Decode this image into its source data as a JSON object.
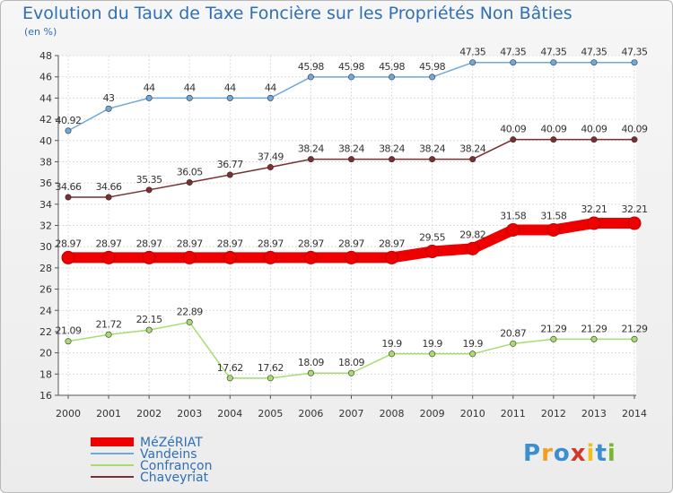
{
  "title": "Evolution du Taux de Taxe Foncière sur les Propriétés Non Bâties",
  "subtitle": "(en %)",
  "logo": {
    "text": "Proxiti",
    "letters": [
      "P",
      "r",
      "o",
      "x",
      "i",
      "t",
      "i"
    ],
    "colors": [
      "#3a8fd0",
      "#f0a020",
      "#3a8fd0",
      "#d0392b",
      "#f0c020",
      "#3a8fd0",
      "#7ab530"
    ]
  },
  "chart_data": {
    "type": "line",
    "x": [
      "2000",
      "2001",
      "2002",
      "2003",
      "2004",
      "2005",
      "2006",
      "2007",
      "2008",
      "2009",
      "2010",
      "2011",
      "2012",
      "2013",
      "2014"
    ],
    "ylim": [
      16,
      48
    ],
    "yticks": [
      16,
      18,
      20,
      22,
      24,
      26,
      28,
      30,
      32,
      34,
      36,
      38,
      40,
      42,
      44,
      46,
      48
    ],
    "grid": true,
    "legend_position": "bottom-left",
    "series": [
      {
        "name": "MéZéRIAT",
        "color": "#ee0000",
        "width": 12,
        "values": [
          28.97,
          28.97,
          28.97,
          28.97,
          28.97,
          28.97,
          28.97,
          28.97,
          28.97,
          29.55,
          29.82,
          31.58,
          31.58,
          32.21,
          32.21
        ],
        "labels": [
          "28.97",
          "28.97",
          "28.97",
          "28.97",
          "28.97",
          "28.97",
          "28.97",
          "28.97",
          "28.97",
          "29.55",
          "29.82",
          "31.58",
          "31.58",
          "32.21",
          "32.21"
        ]
      },
      {
        "name": "Vandeins",
        "color": "#6fa8dc",
        "width": 1.5,
        "values": [
          40.92,
          43,
          44,
          44,
          44,
          44,
          45.98,
          45.98,
          45.98,
          45.98,
          47.35,
          47.35,
          47.35,
          47.35,
          47.35
        ],
        "labels": [
          "40.92",
          "43",
          "44",
          "44",
          "44",
          "44",
          "45.98",
          "45.98",
          "45.98",
          "45.98",
          "47.35",
          "47.35",
          "47.35",
          "47.35",
          "47.35"
        ]
      },
      {
        "name": "Confrançon",
        "color": "#a8dc6f",
        "width": 1.5,
        "values": [
          21.09,
          21.72,
          22.15,
          22.89,
          17.62,
          17.62,
          18.09,
          18.09,
          19.9,
          19.9,
          19.9,
          20.87,
          21.29,
          21.29,
          21.29
        ],
        "labels": [
          "21.09",
          "21.72",
          "22.15",
          "22.89",
          "17.62",
          "17.62",
          "18.09",
          "18.09",
          "19.9",
          "19.9",
          "19.9",
          "20.87",
          "21.29",
          "21.29",
          "21.29"
        ]
      },
      {
        "name": "Chaveyriat",
        "color": "#7a3030",
        "width": 1.5,
        "values": [
          34.66,
          34.66,
          35.35,
          36.05,
          36.77,
          37.49,
          38.24,
          38.24,
          38.24,
          38.24,
          38.24,
          40.09,
          40.09,
          40.09,
          40.09
        ],
        "labels": [
          "34.66",
          "34.66",
          "35.35",
          "36.05",
          "36.77",
          "37.49",
          "38.24",
          "38.24",
          "38.24",
          "38.24",
          "38.24",
          "40.09",
          "40.09",
          "40.09",
          "40.09"
        ]
      }
    ]
  }
}
